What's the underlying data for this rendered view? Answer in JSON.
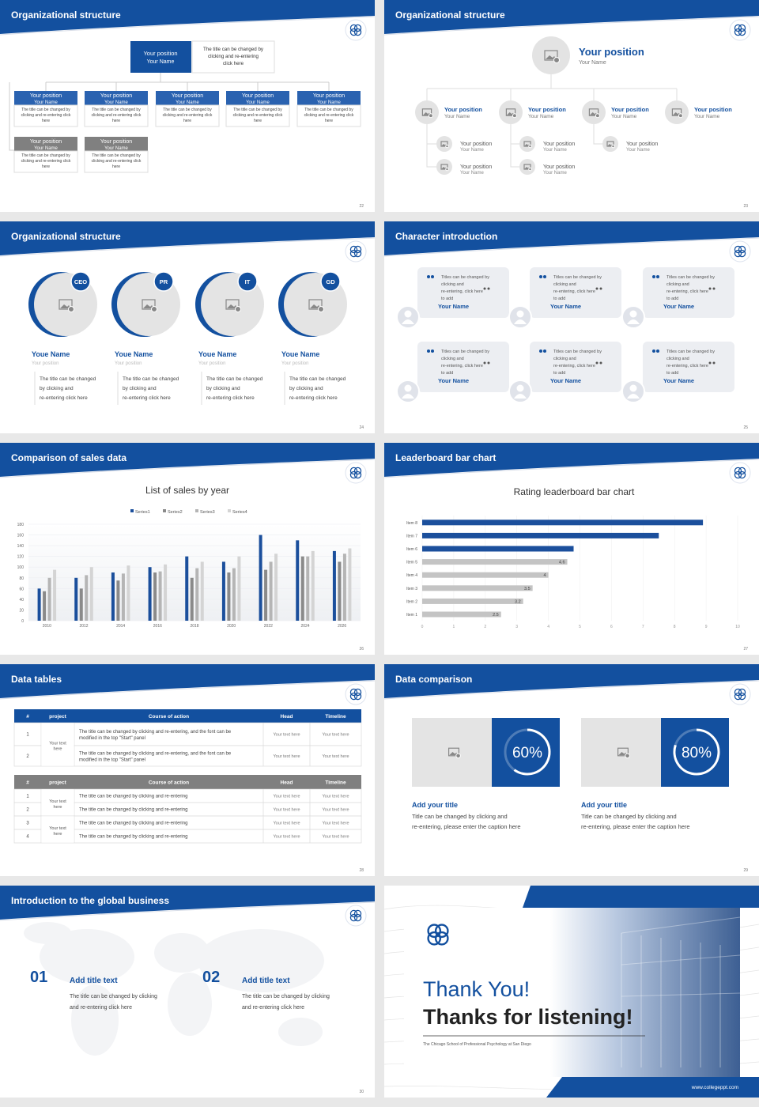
{
  "org_chart": {
    "title": "Organizational structure",
    "page": "22",
    "top": {
      "position": "Your position",
      "name": "Your Name",
      "text": "The title can be changed by clicking and re-entering click here"
    },
    "boxes": [
      {
        "position": "Your position",
        "name": "Your Name",
        "text": "The title can be changed by clicking and re-entering click here"
      },
      {
        "position": "Your position",
        "name": "Your Name",
        "text": "The title can be changed by clicking and re-entering click here"
      },
      {
        "position": "Your position",
        "name": "Your Name",
        "text": "The title can be changed by clicking and re-entering click here"
      },
      {
        "position": "Your position",
        "name": "Your Name",
        "text": "The title can be changed by clicking and re-entering click here"
      },
      {
        "position": "Your position",
        "name": "Your Name",
        "text": "The title can be changed by clicking and re-entering click here"
      }
    ],
    "gray_boxes": [
      {
        "position": "Your position",
        "name": "Your Name",
        "text": "The title can be changed by clicking and re-entering click here"
      },
      {
        "position": "Your position",
        "name": "Your Name",
        "text": "The title can be changed by clicking and re-entering click here"
      }
    ]
  },
  "org_tree": {
    "title": "Organizational structure",
    "page": "23",
    "top": {
      "position": "Your position",
      "name": "Your Name"
    },
    "members": [
      {
        "position": "Your position",
        "name": "Your Name"
      },
      {
        "position": "Your position",
        "name": "Your Name"
      },
      {
        "position": "Your position",
        "name": "Your Name"
      },
      {
        "position": "Your position",
        "name": "Your Name"
      }
    ],
    "sub": [
      {
        "position": "Your position",
        "name": "Your Name"
      },
      {
        "position": "Your position",
        "name": "Your Name"
      },
      {
        "position": "Your position",
        "name": "Your Name"
      },
      {
        "position": "Your position",
        "name": "Your Name"
      },
      {
        "position": "Your position",
        "name": "Your Name"
      }
    ]
  },
  "team": {
    "title": "Organizational structure",
    "page": "24",
    "members": [
      {
        "badge": "CEO",
        "name": "Youe Name",
        "position": "Your position",
        "text": "The title can be changed by clicking and re-entering click here"
      },
      {
        "badge": "PR",
        "name": "Youe Name",
        "position": "Your position",
        "text": "The title can be changed by clicking and re-entering click here"
      },
      {
        "badge": "IT",
        "name": "Youe Name",
        "position": "Your position",
        "text": "The title can be changed by clicking and re-entering click here"
      },
      {
        "badge": "GD",
        "name": "Youe Name",
        "position": "Your position",
        "text": "The title can be changed by clicking and re-entering click here"
      }
    ]
  },
  "characters": {
    "title": "Character introduction",
    "page": "25",
    "cards": [
      {
        "text": "Titles can be changed by clicking and re-entering, click here to add",
        "name": "Your Name"
      },
      {
        "text": "Titles can be changed by clicking and re-entering, click here to add",
        "name": "Your Name"
      },
      {
        "text": "Titles can be changed by clicking and re-entering, click here to add",
        "name": "Your Name"
      },
      {
        "text": "Titles can be changed by clicking and re-entering, click here to add",
        "name": "Your Name"
      },
      {
        "text": "Titles can be changed by clicking and re-entering, click here to add",
        "name": "Your Name"
      },
      {
        "text": "Titles can be changed by clicking and re-entering, click here to add",
        "name": "Your Name"
      }
    ]
  },
  "sales": {
    "title": "Comparison of sales data",
    "page": "26",
    "chart": {
      "type": "bar",
      "title": "List of sales by year",
      "categories": [
        "2010",
        "2012",
        "2014",
        "2016",
        "2018",
        "2020",
        "2022",
        "2024",
        "2026"
      ],
      "series": [
        {
          "name": "Series1",
          "color": "#1b4f9c",
          "values": [
            60,
            80,
            90,
            100,
            120,
            110,
            160,
            150,
            130
          ]
        },
        {
          "name": "Series2",
          "color": "#8a8a8a",
          "values": [
            55,
            60,
            75,
            90,
            80,
            90,
            95,
            120,
            110
          ]
        },
        {
          "name": "Series3",
          "color": "#b5b5b5",
          "values": [
            80,
            85,
            88,
            92,
            98,
            98,
            110,
            120,
            125
          ]
        },
        {
          "name": "Series4",
          "color": "#d4d4d4",
          "values": [
            95,
            100,
            103,
            105,
            110,
            120,
            125,
            130,
            135
          ]
        }
      ],
      "ylim": [
        0,
        180
      ],
      "yticks": [
        0,
        20,
        40,
        60,
        80,
        100,
        120,
        140,
        160,
        180
      ],
      "grid": true,
      "legend": "top"
    }
  },
  "leaderboard": {
    "title": "Leaderboard bar chart",
    "page": "27",
    "chart": {
      "type": "hbar",
      "title": "Rating leaderboard bar chart",
      "categories": [
        "Item 1",
        "Item 2",
        "Item 3",
        "Item 4",
        "Item 5",
        "Item 6",
        "Item 7",
        "Item 8"
      ],
      "values": [
        2.5,
        3.2,
        3.5,
        4,
        4.6,
        4.8,
        7.5,
        8.9
      ],
      "value_labels": [
        "2.5",
        "3.2",
        "3.5",
        "4",
        "4.6",
        null,
        null,
        null
      ],
      "colors": [
        "#c4c4c4",
        "#c4c4c4",
        "#c4c4c4",
        "#c4c4c4",
        "#c4c4c4",
        "#1b4f9c",
        "#1b4f9c",
        "#1b4f9c"
      ],
      "xlim": [
        0,
        10
      ],
      "xticks": [
        0,
        1,
        2,
        3,
        4,
        5,
        6,
        7,
        8,
        9,
        10
      ],
      "grid": true
    }
  },
  "tables": {
    "title": "Data tables",
    "page": "28",
    "tables": [
      {
        "header": [
          "#",
          "project",
          "Course of action",
          "Head",
          "Timeline"
        ],
        "groups": [
          {
            "project": "Your text here",
            "rows": [
              [
                "1",
                "The title can be changed by clicking and re-entering, and the font can be modified in the top \"Start\" panel",
                "Your text here",
                "Your text here"
              ],
              [
                "2",
                "The title can be changed by clicking and re-entering, and the font can be modified in the top \"Start\" panel",
                "Your text here",
                "Your text here"
              ]
            ]
          }
        ]
      },
      {
        "header": [
          "#",
          "project",
          "Course of action",
          "Head",
          "Timeline"
        ],
        "groups": [
          {
            "project": "Your text here",
            "rows": [
              [
                "1",
                "The title can be changed by clicking and re-entering",
                "Your text here",
                "Your text here"
              ],
              [
                "2",
                "The title can be changed by clicking and re-entering",
                "Your text here",
                "Your text here"
              ]
            ]
          },
          {
            "project": "Your text here",
            "rows": [
              [
                "3",
                "The title can be changed by clicking and re-entering",
                "Your text here",
                "Your text here"
              ],
              [
                "4",
                "The title can be changed by clicking and re-entering",
                "Your text here",
                "Your text here"
              ]
            ]
          }
        ]
      }
    ]
  },
  "comparison": {
    "title": "Data comparison",
    "page": "29",
    "items": [
      {
        "value": 60,
        "value_label": "60%",
        "title": "Add your title",
        "text": "Title can be changed by clicking and re-entering, please enter the caption here"
      },
      {
        "value": 80,
        "value_label": "80%",
        "title": "Add your title",
        "text": "Title can be changed by clicking and re-entering, please enter the caption here"
      }
    ]
  },
  "global": {
    "title": "Introduction to the global business",
    "page": "30",
    "items": [
      {
        "number": "01",
        "title": "Add title text",
        "text": "The title can be changed by clicking and re-entering click here"
      },
      {
        "number": "02",
        "title": "Add title text",
        "text": "The title can be changed by clicking and re-entering click here"
      }
    ]
  },
  "closing": {
    "thanks": "Thank You!",
    "subtitle": "Thanks for listening!",
    "school": "The Chicago School of Professional Psychology at San Diego",
    "url": "www.collegeppt.com"
  }
}
